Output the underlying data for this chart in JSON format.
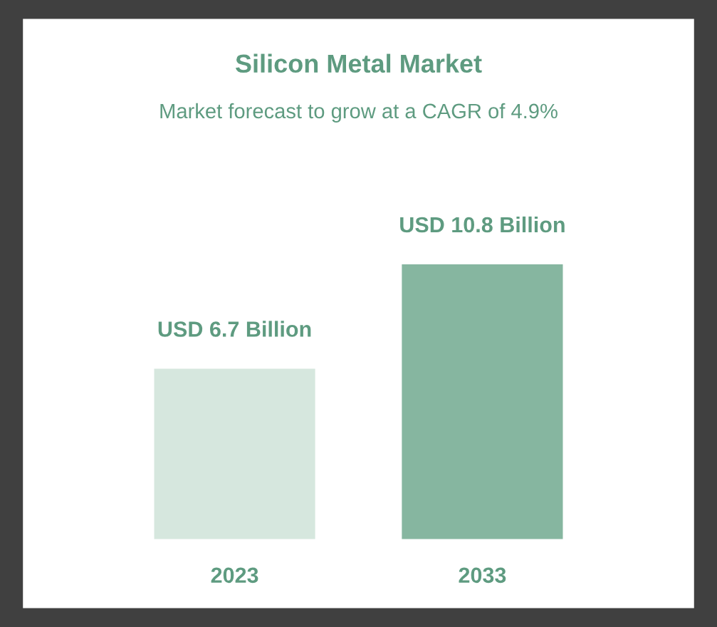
{
  "chart_data": {
    "type": "bar",
    "title": "Silicon Metal Market",
    "subtitle": "Market forecast to grow at a CAGR of 4.9%",
    "categories": [
      "2023",
      "2033"
    ],
    "values": [
      6.7,
      10.8
    ],
    "colors": [
      "#d6e7de",
      "#86b6a0"
    ],
    "value_labels": [
      "USD 6.7 Billion",
      "USD 10.8 Billion"
    ],
    "tick_labels": "x",
    "grid": false,
    "legend": false
  }
}
